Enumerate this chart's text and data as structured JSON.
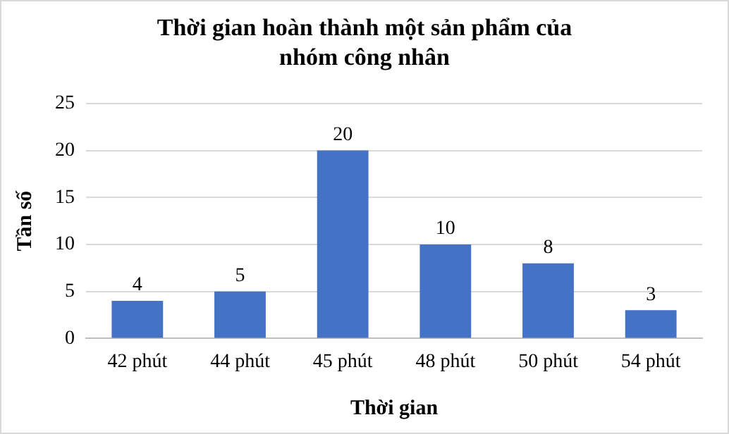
{
  "chart_data": {
    "type": "bar",
    "title": "Thời gian hoàn thành một sản phẩm của nhóm công nhân",
    "xlabel": "Thời gian",
    "ylabel": "Tần số",
    "categories": [
      "42 phút",
      "44 phút",
      "45 phút",
      "48 phút",
      "50 phút",
      "54 phút"
    ],
    "values": [
      4,
      5,
      20,
      10,
      8,
      3
    ],
    "color": "#4472c4",
    "ylim": [
      0,
      25
    ],
    "yticks": [
      0,
      5,
      10,
      15,
      20,
      25
    ],
    "grid": "y",
    "data_labels": true
  }
}
